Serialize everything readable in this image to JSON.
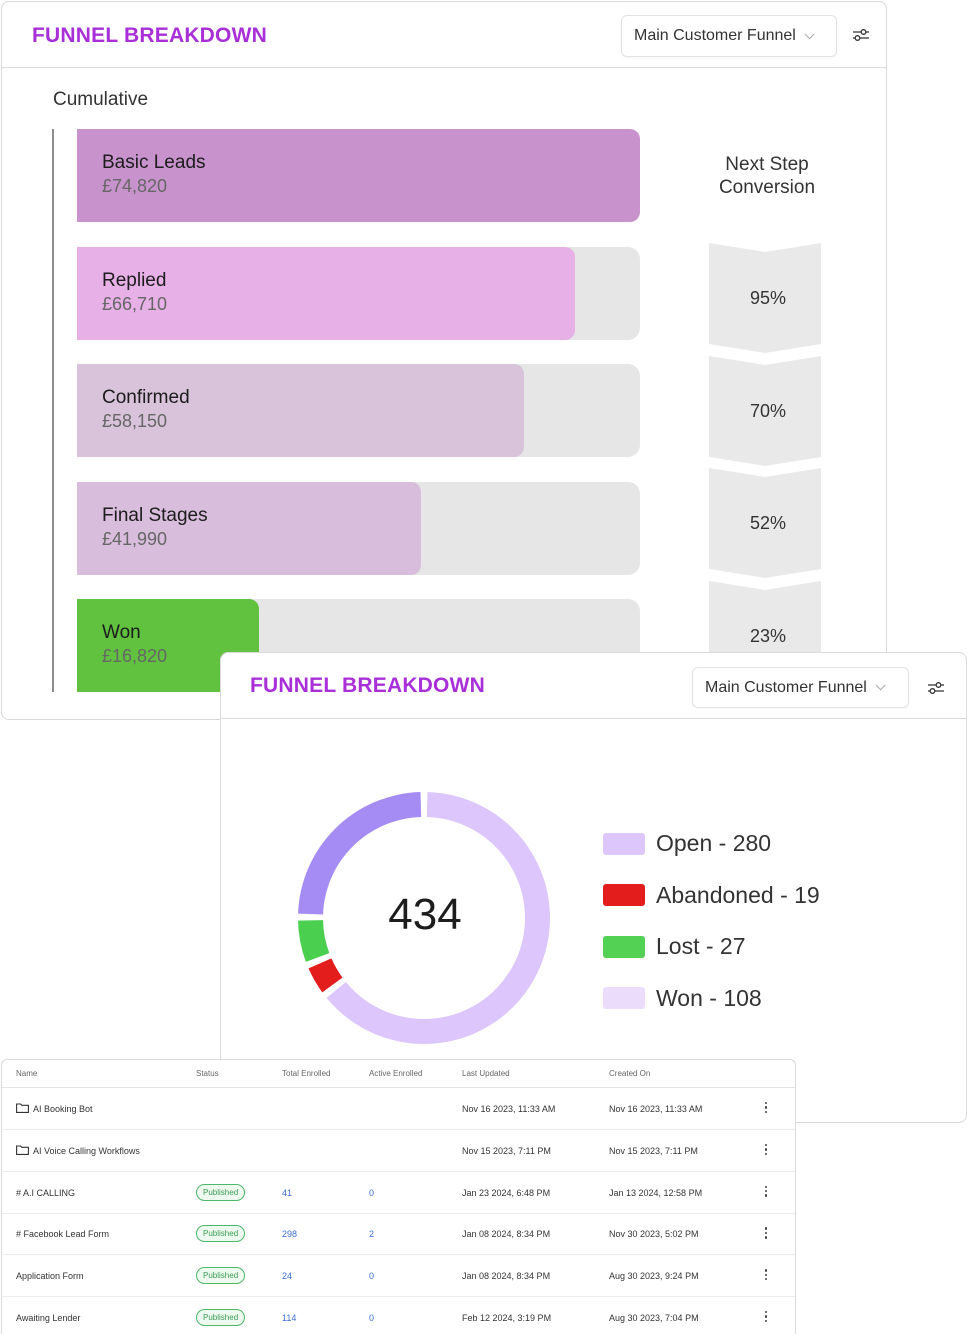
{
  "funnel_card": {
    "title": "FUNNEL BREAKDOWN",
    "dropdown_value": "Main Customer Funnel",
    "section_label": "Cumulative",
    "next_step_label": "Next Step Conversion",
    "stages": [
      {
        "name": "Basic Leads",
        "value": "£74,820",
        "fill_fraction": 1.0,
        "color": "#c893cc"
      },
      {
        "name": "Replied",
        "value": "£66,710",
        "fill_fraction": 0.885,
        "color": "#e7b0e6"
      },
      {
        "name": "Confirmed",
        "value": "£58,150",
        "fill_fraction": 0.794,
        "color": "#d8c3da"
      },
      {
        "name": "Final Stages",
        "value": "£41,990",
        "fill_fraction": 0.611,
        "color": "#d9bddc"
      },
      {
        "name": "Won",
        "value": "£16,820",
        "fill_fraction": 0.323,
        "color": "#60c23e"
      }
    ],
    "conversions": [
      "95%",
      "70%",
      "52%",
      "23%"
    ]
  },
  "donut_card": {
    "title": "FUNNEL BREAKDOWN",
    "dropdown_value": "Main Customer Funnel",
    "total": "434",
    "legend": [
      {
        "label": "Open - 280",
        "color": "#dcc6fb"
      },
      {
        "label": "Abandoned - 19",
        "color": "#e31c1c"
      },
      {
        "label": "Lost - 27",
        "color": "#52d155"
      },
      {
        "label": "Won - 108",
        "color": "#ecdcfb"
      }
    ]
  },
  "chart_data": {
    "type": "pie",
    "categories": [
      "Open",
      "Abandoned",
      "Lost",
      "Won"
    ],
    "values": [
      280,
      19,
      27,
      108
    ],
    "segment_colors": [
      "#dcc6fb",
      "#e31c1c",
      "#4bcf4e",
      "#a58cf4"
    ],
    "legend_placement": "right"
  },
  "table": {
    "columns": [
      "Name",
      "Status",
      "Total Enrolled",
      "Active Enrolled",
      "Last Updated",
      "Created On"
    ],
    "rows": [
      {
        "type": "folder",
        "name": "AI Booking Bot",
        "status": "",
        "total": "",
        "active": "",
        "updated": "Nov 16 2023, 11:33 AM",
        "created": "Nov 16 2023, 11:33 AM"
      },
      {
        "type": "folder",
        "name": "AI Voice Calling Workflows",
        "status": "",
        "total": "",
        "active": "",
        "updated": "Nov 15 2023, 7:11 PM",
        "created": "Nov 15 2023, 7:11 PM"
      },
      {
        "type": "workflow",
        "name": "# A.I CALLING",
        "status": "Published",
        "total": "41",
        "active": "0",
        "updated": "Jan 23 2024, 6:48 PM",
        "created": "Jan 13 2024, 12:58 PM"
      },
      {
        "type": "workflow",
        "name": "# Facebook Lead Form",
        "status": "Published",
        "total": "298",
        "active": "2",
        "updated": "Jan 08 2024, 8:34 PM",
        "created": "Nov 30 2023, 5:02 PM"
      },
      {
        "type": "workflow",
        "name": "Application Form",
        "status": "Published",
        "total": "24",
        "active": "0",
        "updated": "Jan 08 2024, 8:34 PM",
        "created": "Aug 30 2023, 9:24 PM"
      },
      {
        "type": "workflow",
        "name": "Awaiting Lender",
        "status": "Published",
        "total": "114",
        "active": "0",
        "updated": "Feb 12 2024, 3:19 PM",
        "created": "Aug 30 2023, 7:04 PM"
      }
    ]
  }
}
